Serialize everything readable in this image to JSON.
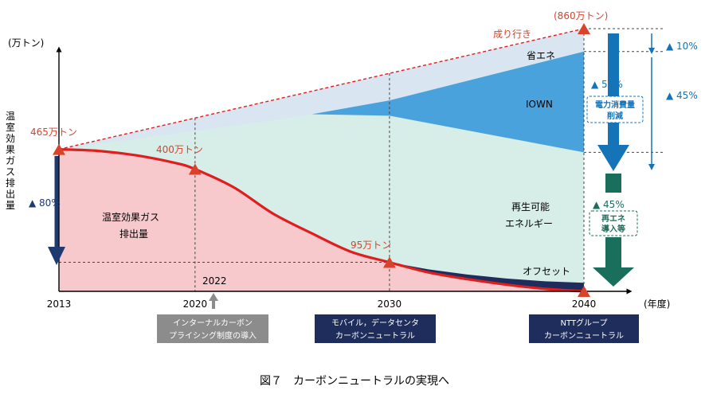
{
  "chart_data": {
    "type": "area",
    "title": "",
    "caption": "図７　カーボンニュートラルの実現へ",
    "y_unit": "(万トン)",
    "y_axis_title": "温室効果ガス排出量",
    "x_unit": "(年度)",
    "x_ticks": [
      "2013",
      "2020",
      "2030",
      "2040"
    ],
    "xlim": [
      2013,
      2040
    ],
    "ylim": [
      0,
      860
    ],
    "baseline_points": [
      {
        "x": 2013,
        "y": 465,
        "label": "465万トン"
      },
      {
        "x": 2040,
        "y": 860,
        "label": "(860万トン)"
      }
    ],
    "bau_label": "成り行き",
    "emission_points": [
      {
        "x": 2020,
        "y": 400,
        "label": "400万トン"
      },
      {
        "x": 2030,
        "y": 95,
        "label": "95万トン"
      },
      {
        "x": 2040,
        "y": 0
      }
    ],
    "emission_curve": {
      "x": [
        2013,
        2015,
        2017,
        2019,
        2020,
        2022,
        2024,
        2026,
        2028,
        2030,
        2032,
        2034,
        2036,
        2038,
        2040
      ],
      "y": [
        465,
        460,
        445,
        420,
        400,
        340,
        255,
        190,
        130,
        95,
        62,
        40,
        22,
        8,
        0
      ]
    },
    "offset_band": {
      "x": [
        2030,
        2032,
        2034,
        2036,
        2038,
        2040
      ],
      "y_top": [
        95,
        72,
        55,
        42,
        33,
        28
      ]
    },
    "iown_split_upper": {
      "x": [
        2013,
        2020,
        2024,
        2026,
        2030,
        2040
      ],
      "y": [
        465,
        525,
        560,
        580,
        625,
        785
      ]
    },
    "iown_split_lower": {
      "x": [
        2026,
        2030,
        2040
      ],
      "y": [
        580,
        575,
        455
      ]
    },
    "series_labels": {
      "energy_saving": "省エネ",
      "iown": "IOWN",
      "renewable_line1": "再生可能",
      "renewable_line2": "エネルギー",
      "offset": "オフセット",
      "ghg_line1": "温室効果ガス",
      "ghg_line2": "排出量"
    },
    "reduction_80_label": "▲ 80%",
    "year_2022_label": "2022",
    "right_annotations": {
      "pct_10": "▲ 10%",
      "pct_45_total": "▲ 45%",
      "pct_55": "▲ 55%",
      "power_box_line1": "電力消費量",
      "power_box_line2": "削減",
      "pct_45_renew": "▲ 45%",
      "renew_box_line1": "再エネ",
      "renew_box_line2": "導入等"
    },
    "milestones": [
      {
        "line1": "インターナルカーボン",
        "line2": "プライシング制度の導入"
      },
      {
        "line1": "モバイル，データセンタ",
        "line2": "カーボンニュートラル"
      },
      {
        "line1": "NTTグループ",
        "line2": "カーボンニュートラル"
      }
    ],
    "colors": {
      "bau_band": "#d9e6f2",
      "iown": "#4aa2dc",
      "renewable": "#d7ede8",
      "emission_fill": "#f7c9cc",
      "emission_line": "#e01e1e",
      "offset": "#1f2d5c",
      "marker": "#d9432a",
      "dark_arrow": "#1f3a6e",
      "blue_arrow": "#1573b8",
      "green_arrow": "#1a6e5c",
      "milestone_gray": "#8c8c8c",
      "milestone_navy": "#1f2d5c"
    }
  }
}
